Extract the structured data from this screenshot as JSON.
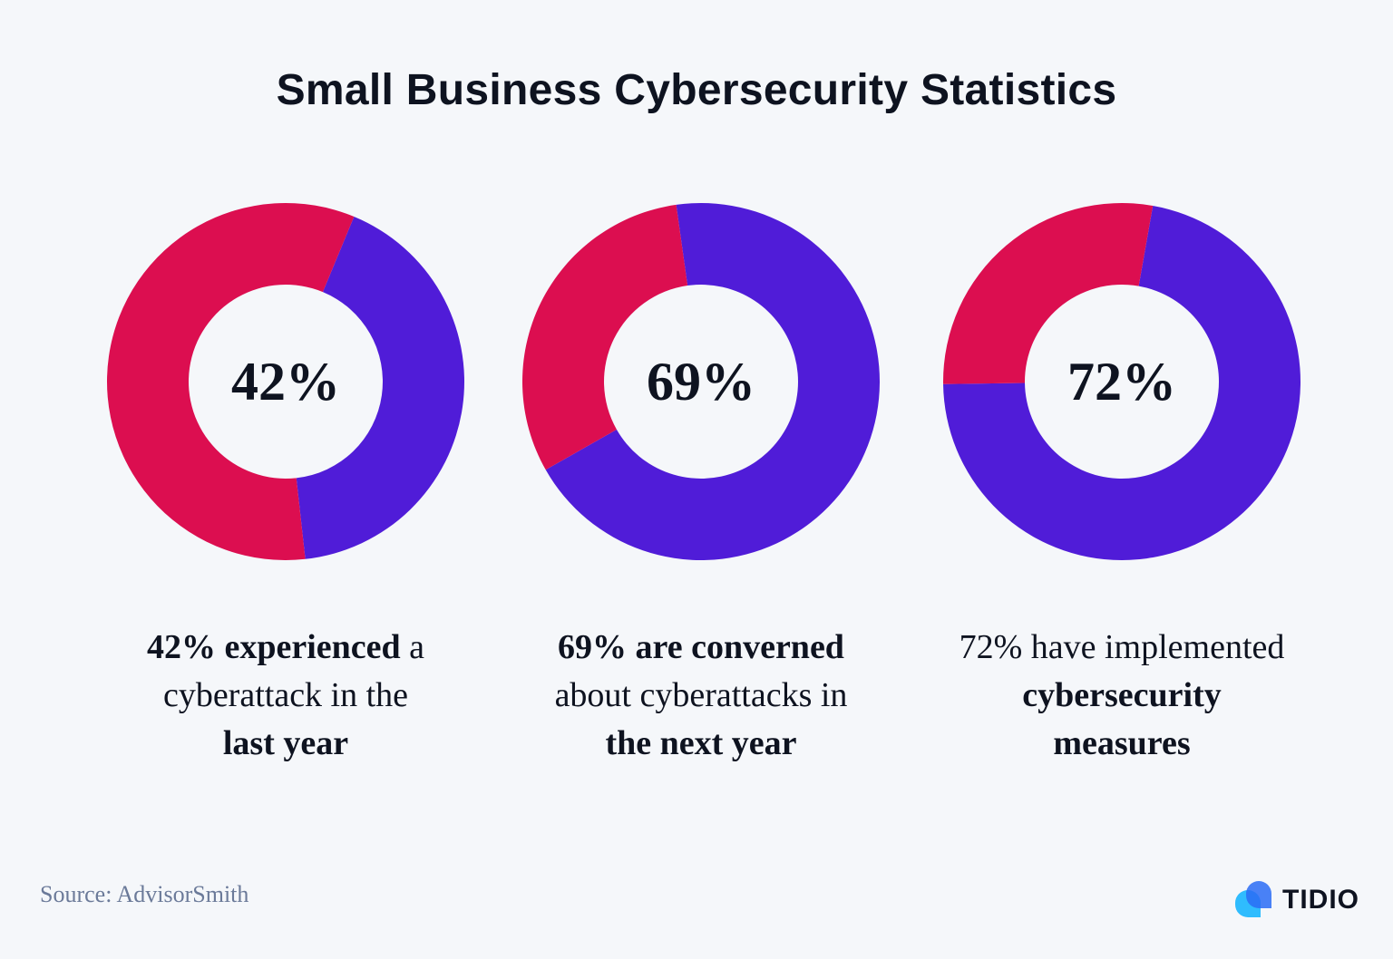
{
  "title": "Small Business Cybersecurity Statistics",
  "colors": {
    "primary": "#501cd8",
    "remainder": "#dc0e50",
    "background": "#f5f7fa"
  },
  "chart_data": [
    {
      "type": "pie",
      "variant": "donut",
      "label": "42%",
      "values": [
        42,
        58
      ],
      "colors": [
        "#501cd8",
        "#dc0e50"
      ],
      "caption": [
        [
          {
            "text": "42% experienced",
            "bold": true
          },
          {
            "text": " a",
            "bold": false
          }
        ],
        [
          {
            "text": "cyberattack in the",
            "bold": false
          }
        ],
        [
          {
            "text": "last year",
            "bold": true
          }
        ]
      ]
    },
    {
      "type": "pie",
      "variant": "donut",
      "label": "69%",
      "values": [
        69,
        31
      ],
      "colors": [
        "#501cd8",
        "#dc0e50"
      ],
      "caption": [
        [
          {
            "text": "69% are converned",
            "bold": true
          }
        ],
        [
          {
            "text": "about cyberattacks in",
            "bold": false
          }
        ],
        [
          {
            "text": "the next year",
            "bold": true
          }
        ]
      ]
    },
    {
      "type": "pie",
      "variant": "donut",
      "label": "72%",
      "values": [
        72,
        28
      ],
      "colors": [
        "#501cd8",
        "#dc0e50"
      ],
      "caption": [
        [
          {
            "text": "72% have implemented",
            "bold": false
          }
        ],
        [
          {
            "text": "cybersecurity",
            "bold": true
          }
        ],
        [
          {
            "text": "measures",
            "bold": true
          }
        ]
      ]
    }
  ],
  "footer": {
    "source": "Source: AdvisorSmith",
    "logo_text": "TIDIO",
    "logo_icon": "chat-bubbles-icon"
  }
}
